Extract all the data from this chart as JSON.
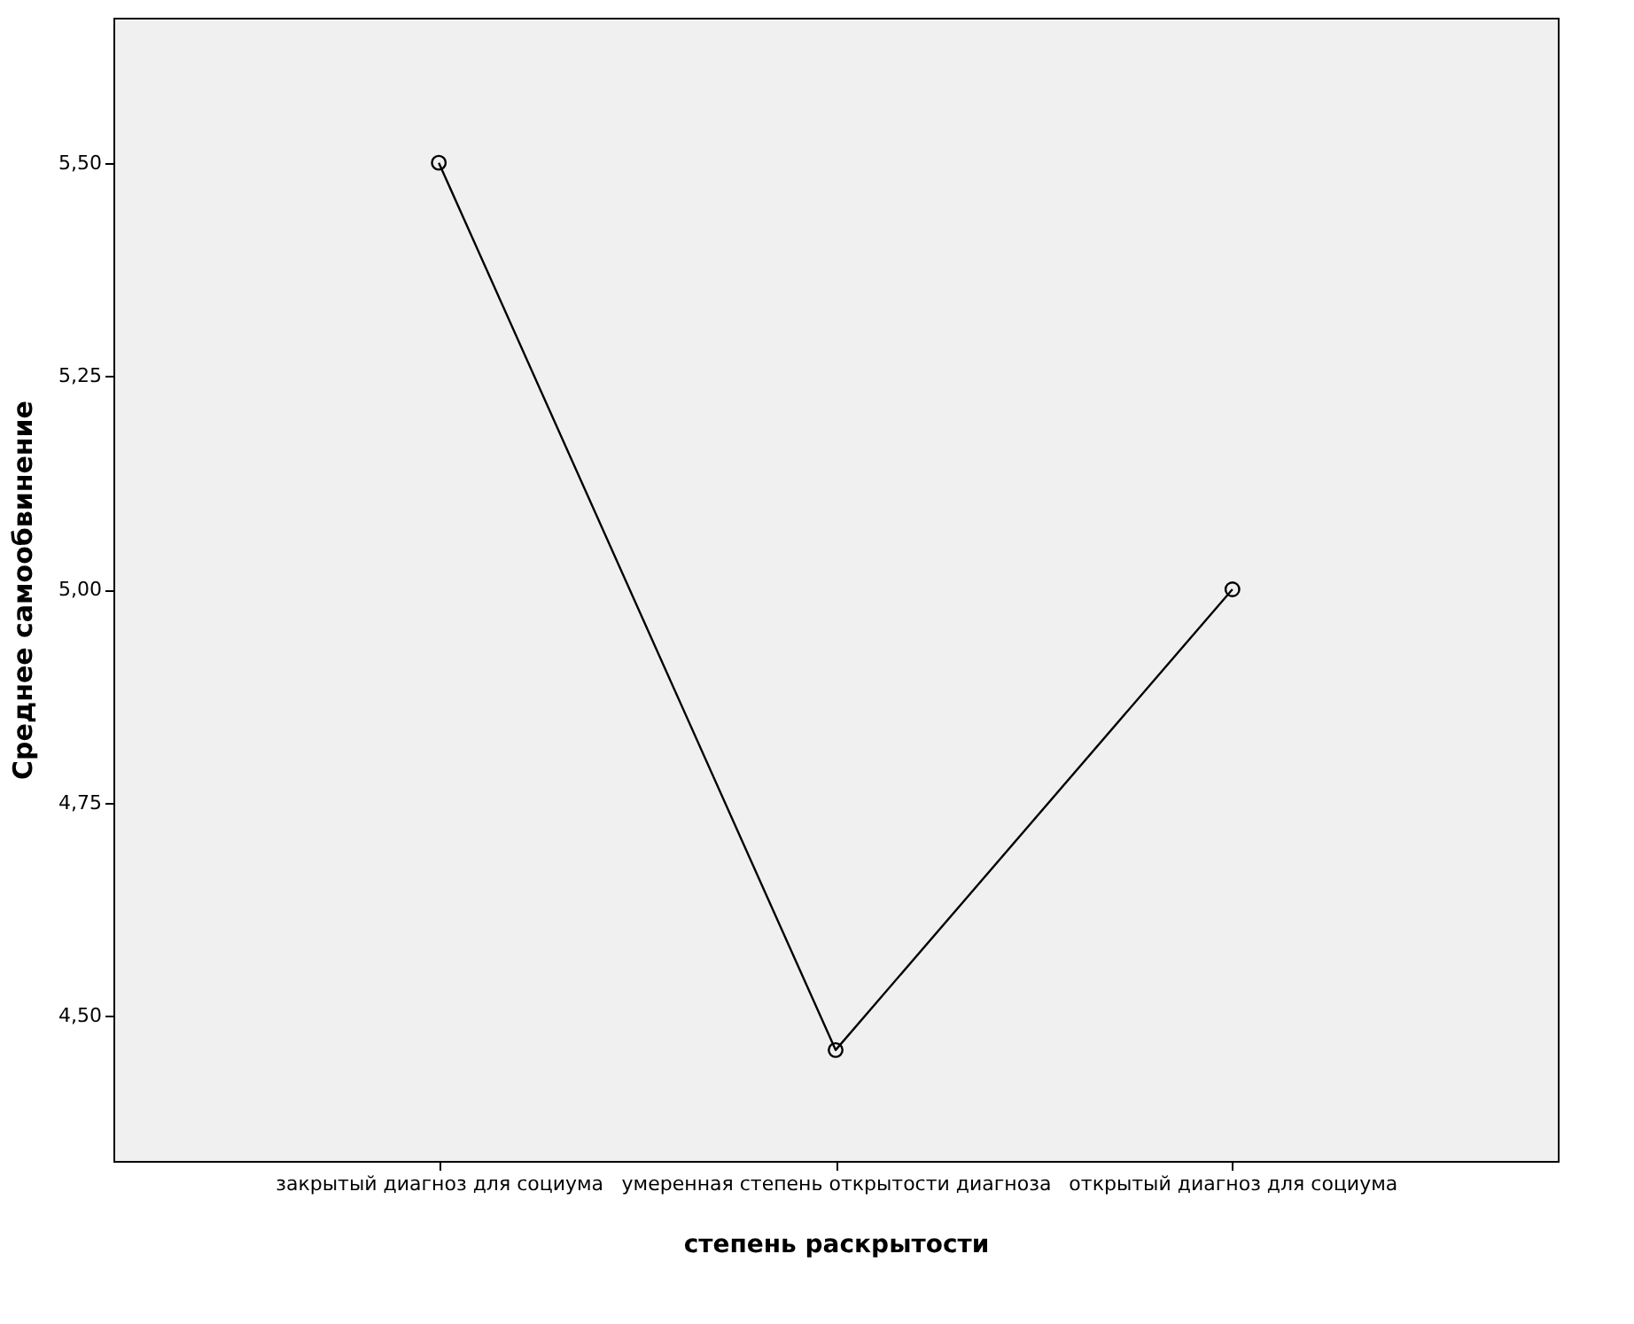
{
  "chart_data": {
    "type": "line",
    "xlabel": "степень раскрытости",
    "ylabel": "Среднее самообвинение",
    "categories": [
      "закрытый диагноз для социума",
      "умеренная степень открытости диагноза",
      "открытый диагноз для социума"
    ],
    "series": [
      {
        "color": "#000000",
        "values": [
          5.5,
          4.46,
          5.0
        ]
      }
    ],
    "ylim": [
      4.33,
      5.67
    ],
    "yticks": [
      {
        "value": 4.5,
        "label": "4,50"
      },
      {
        "value": 4.75,
        "label": "4,75"
      },
      {
        "value": 5.0,
        "label": "5,00"
      },
      {
        "value": 5.25,
        "label": "5,25"
      },
      {
        "value": 5.5,
        "label": "5,50"
      }
    ],
    "grid": false,
    "marker": "circle",
    "line_style": "solid"
  }
}
